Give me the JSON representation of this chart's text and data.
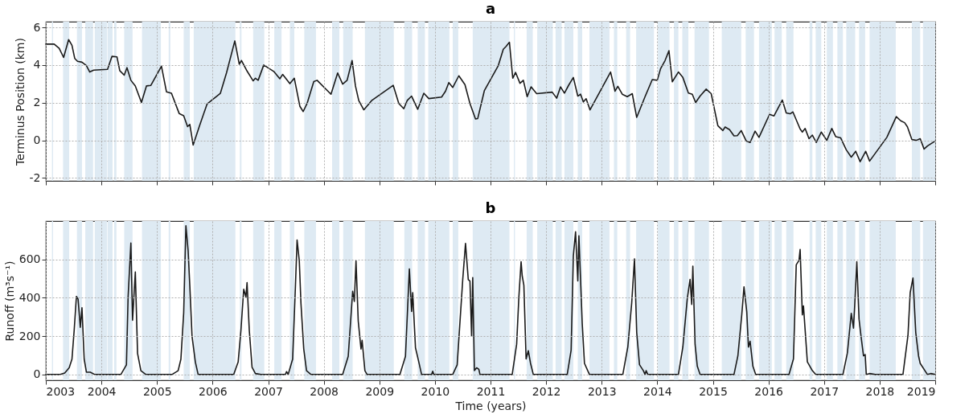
{
  "chart_data": [
    {
      "type": "line",
      "title": "a",
      "ylabel": "Terminus Position (km)",
      "xlim": [
        2003,
        2019
      ],
      "xticks": [
        2003,
        2004,
        2005,
        2006,
        2007,
        2008,
        2009,
        2010,
        2011,
        2012,
        2013,
        2014,
        2015,
        2016,
        2017,
        2018,
        2019
      ],
      "ylim": [
        -2.15,
        6.3
      ],
      "yticks": [
        -2,
        0,
        2,
        4,
        6
      ],
      "grid": true,
      "tick_labels": "y",
      "x": [
        2003.0,
        2003.15,
        2003.24,
        2003.32,
        2003.41,
        2003.47,
        2003.52,
        2003.57,
        2003.65,
        2003.73,
        2003.79,
        2003.86,
        2004.11,
        2004.19,
        2004.28,
        2004.33,
        2004.41,
        2004.46,
        2004.53,
        2004.61,
        2004.72,
        2004.81,
        2004.89,
        2005.08,
        2005.17,
        2005.26,
        2005.4,
        2005.48,
        2005.55,
        2005.59,
        2005.65,
        2005.76,
        2005.9,
        2006.14,
        2006.25,
        2006.4,
        2006.48,
        2006.52,
        2006.61,
        2006.73,
        2006.77,
        2006.82,
        2006.92,
        2007.1,
        2007.21,
        2007.26,
        2007.39,
        2007.47,
        2007.57,
        2007.63,
        2007.7,
        2007.82,
        2007.88,
        2008.13,
        2008.25,
        2008.34,
        2008.42,
        2008.51,
        2008.57,
        2008.63,
        2008.72,
        2008.86,
        2009.25,
        2009.35,
        2009.44,
        2009.5,
        2009.58,
        2009.69,
        2009.8,
        2009.89,
        2010.12,
        2010.19,
        2010.25,
        2010.32,
        2010.43,
        2010.54,
        2010.63,
        2010.73,
        2010.77,
        2010.89,
        2011.14,
        2011.23,
        2011.28,
        2011.34,
        2011.4,
        2011.45,
        2011.53,
        2011.59,
        2011.66,
        2011.73,
        2011.83,
        2012.11,
        2012.19,
        2012.26,
        2012.33,
        2012.41,
        2012.49,
        2012.57,
        2012.62,
        2012.67,
        2012.72,
        2012.79,
        2013.16,
        2013.24,
        2013.29,
        2013.37,
        2013.46,
        2013.55,
        2013.63,
        2013.78,
        2013.91,
        2014.0,
        2014.06,
        2014.14,
        2014.21,
        2014.27,
        2014.38,
        2014.46,
        2014.56,
        2014.63,
        2014.69,
        2014.77,
        2014.88,
        2014.97,
        2015.09,
        2015.18,
        2015.22,
        2015.3,
        2015.38,
        2015.44,
        2015.51,
        2015.6,
        2015.67,
        2015.76,
        2015.83,
        2016.02,
        2016.1,
        2016.25,
        2016.32,
        2016.39,
        2016.44,
        2016.57,
        2016.61,
        2016.66,
        2016.73,
        2016.79,
        2016.86,
        2016.95,
        2017.05,
        2017.14,
        2017.21,
        2017.3,
        2017.4,
        2017.49,
        2017.57,
        2017.65,
        2017.75,
        2017.82,
        2018.13,
        2018.3,
        2018.38,
        2018.45,
        2018.5,
        2018.58,
        2018.66,
        2018.73,
        2018.8,
        2018.86,
        2019.0
      ],
      "series": [
        {
          "color": "#1a1a1a",
          "values": [
            5.11,
            5.11,
            4.89,
            4.4,
            5.35,
            5.05,
            4.35,
            4.2,
            4.15,
            3.97,
            3.63,
            3.73,
            3.77,
            4.46,
            4.43,
            3.7,
            3.46,
            3.86,
            3.19,
            2.89,
            2.01,
            2.89,
            2.92,
            3.94,
            2.58,
            2.5,
            1.42,
            1.31,
            0.73,
            0.85,
            -0.25,
            0.73,
            1.93,
            2.5,
            3.58,
            5.28,
            4.04,
            4.24,
            3.73,
            3.16,
            3.3,
            3.19,
            4.0,
            3.66,
            3.27,
            3.5,
            3.01,
            3.3,
            1.81,
            1.53,
            1.96,
            3.12,
            3.19,
            2.45,
            3.58,
            2.99,
            3.19,
            4.24,
            2.89,
            2.11,
            1.62,
            2.11,
            2.92,
            1.96,
            1.68,
            2.11,
            2.35,
            1.65,
            2.5,
            2.22,
            2.3,
            2.61,
            3.07,
            2.81,
            3.43,
            2.96,
            1.96,
            1.14,
            1.16,
            2.65,
            3.97,
            4.84,
            4.99,
            5.21,
            3.3,
            3.61,
            3.03,
            3.19,
            2.32,
            2.84,
            2.48,
            2.56,
            2.24,
            2.84,
            2.51,
            2.95,
            3.34,
            2.35,
            2.45,
            2.04,
            2.21,
            1.62,
            3.63,
            2.61,
            2.87,
            2.45,
            2.32,
            2.48,
            1.22,
            2.32,
            3.23,
            3.19,
            3.81,
            4.24,
            4.76,
            3.11,
            3.63,
            3.34,
            2.51,
            2.45,
            2.01,
            2.35,
            2.72,
            2.48,
            0.78,
            0.52,
            0.71,
            0.57,
            0.24,
            0.25,
            0.52,
            -0.03,
            -0.11,
            0.49,
            0.16,
            1.38,
            1.3,
            2.14,
            1.46,
            1.41,
            1.51,
            0.6,
            0.44,
            0.63,
            0.09,
            0.28,
            -0.11,
            0.44,
            0.0,
            0.63,
            0.2,
            0.13,
            -0.5,
            -0.89,
            -0.58,
            -1.13,
            -0.58,
            -1.1,
            0.16,
            1.26,
            1.04,
            0.94,
            0.72,
            0.05,
            0.0,
            0.09,
            -0.46,
            -0.3,
            -0.03
          ]
        }
      ],
      "bands": [
        {
          "axis": "x",
          "from": 2003.11,
          "to": 2003.13,
          "color": "#deeaf3"
        },
        {
          "axis": "x",
          "from": 2003.31,
          "to": 2003.42,
          "color": "#deeaf3"
        },
        {
          "axis": "x",
          "from": 2003.56,
          "to": 2003.65,
          "color": "#deeaf3"
        },
        {
          "axis": "x",
          "from": 2003.71,
          "to": 2003.85,
          "color": "#deeaf3"
        },
        {
          "axis": "x",
          "from": 2003.88,
          "to": 2004.1,
          "color": "#deeaf3"
        },
        {
          "axis": "x",
          "from": 2004.11,
          "to": 2004.2,
          "color": "#deeaf3"
        },
        {
          "axis": "x",
          "from": 2004.23,
          "to": 2004.27,
          "color": "#deeaf3"
        },
        {
          "axis": "x",
          "from": 2004.41,
          "to": 2004.56,
          "color": "#deeaf3"
        },
        {
          "axis": "x",
          "from": 2004.73,
          "to": 2005.07,
          "color": "#deeaf3"
        },
        {
          "axis": "x",
          "from": 2005.21,
          "to": 2005.24,
          "color": "#deeaf3"
        },
        {
          "axis": "x",
          "from": 2005.48,
          "to": 2005.59,
          "color": "#deeaf3"
        },
        {
          "axis": "x",
          "from": 2005.66,
          "to": 2006.41,
          "color": "#deeaf3"
        },
        {
          "axis": "x",
          "from": 2006.49,
          "to": 2006.52,
          "color": "#deeaf3"
        },
        {
          "axis": "x",
          "from": 2006.73,
          "to": 2006.93,
          "color": "#deeaf3"
        },
        {
          "axis": "x",
          "from": 2007.11,
          "to": 2007.24,
          "color": "#deeaf3"
        },
        {
          "axis": "x",
          "from": 2007.39,
          "to": 2007.47,
          "color": "#deeaf3"
        },
        {
          "axis": "x",
          "from": 2007.65,
          "to": 2007.86,
          "color": "#deeaf3"
        },
        {
          "axis": "x",
          "from": 2008.15,
          "to": 2008.28,
          "color": "#deeaf3"
        },
        {
          "axis": "x",
          "from": 2008.35,
          "to": 2008.52,
          "color": "#deeaf3"
        },
        {
          "axis": "x",
          "from": 2008.74,
          "to": 2009.26,
          "color": "#deeaf3"
        },
        {
          "axis": "x",
          "from": 2009.45,
          "to": 2009.59,
          "color": "#deeaf3"
        },
        {
          "axis": "x",
          "from": 2009.69,
          "to": 2009.82,
          "color": "#deeaf3"
        },
        {
          "axis": "x",
          "from": 2009.88,
          "to": 2010.26,
          "color": "#deeaf3"
        },
        {
          "axis": "x",
          "from": 2010.32,
          "to": 2010.42,
          "color": "#deeaf3"
        },
        {
          "axis": "x",
          "from": 2010.68,
          "to": 2011.34,
          "color": "#deeaf3"
        },
        {
          "axis": "x",
          "from": 2011.42,
          "to": 2011.44,
          "color": "#deeaf3"
        },
        {
          "axis": "x",
          "from": 2011.65,
          "to": 2011.76,
          "color": "#deeaf3"
        },
        {
          "axis": "x",
          "from": 2011.84,
          "to": 2012.12,
          "color": "#deeaf3"
        },
        {
          "axis": "x",
          "from": 2012.17,
          "to": 2012.28,
          "color": "#deeaf3"
        },
        {
          "axis": "x",
          "from": 2012.33,
          "to": 2012.49,
          "color": "#deeaf3"
        },
        {
          "axis": "x",
          "from": 2012.57,
          "to": 2012.65,
          "color": "#deeaf3"
        },
        {
          "axis": "x",
          "from": 2012.78,
          "to": 2013.14,
          "color": "#deeaf3"
        },
        {
          "axis": "x",
          "from": 2013.22,
          "to": 2013.28,
          "color": "#deeaf3"
        },
        {
          "axis": "x",
          "from": 2013.44,
          "to": 2013.51,
          "color": "#deeaf3"
        },
        {
          "axis": "x",
          "from": 2013.62,
          "to": 2013.94,
          "color": "#deeaf3"
        },
        {
          "axis": "x",
          "from": 2014.01,
          "to": 2014.22,
          "color": "#deeaf3"
        },
        {
          "axis": "x",
          "from": 2014.3,
          "to": 2014.38,
          "color": "#deeaf3"
        },
        {
          "axis": "x",
          "from": 2014.45,
          "to": 2014.56,
          "color": "#deeaf3"
        },
        {
          "axis": "x",
          "from": 2014.67,
          "to": 2014.93,
          "color": "#deeaf3"
        },
        {
          "axis": "x",
          "from": 2015.16,
          "to": 2015.51,
          "color": "#deeaf3"
        },
        {
          "axis": "x",
          "from": 2015.59,
          "to": 2015.74,
          "color": "#deeaf3"
        },
        {
          "axis": "x",
          "from": 2015.83,
          "to": 2016.06,
          "color": "#deeaf3"
        },
        {
          "axis": "x",
          "from": 2016.11,
          "to": 2016.24,
          "color": "#deeaf3"
        },
        {
          "axis": "x",
          "from": 2016.32,
          "to": 2016.45,
          "color": "#deeaf3"
        },
        {
          "axis": "x",
          "from": 2016.74,
          "to": 2016.79,
          "color": "#deeaf3"
        },
        {
          "axis": "x",
          "from": 2016.85,
          "to": 2016.95,
          "color": "#deeaf3"
        },
        {
          "axis": "x",
          "from": 2017.05,
          "to": 2017.16,
          "color": "#deeaf3"
        },
        {
          "axis": "x",
          "from": 2017.24,
          "to": 2017.34,
          "color": "#deeaf3"
        },
        {
          "axis": "x",
          "from": 2017.4,
          "to": 2017.56,
          "color": "#deeaf3"
        },
        {
          "axis": "x",
          "from": 2017.63,
          "to": 2017.74,
          "color": "#deeaf3"
        },
        {
          "axis": "x",
          "from": 2017.82,
          "to": 2018.29,
          "color": "#deeaf3"
        },
        {
          "axis": "x",
          "from": 2018.58,
          "to": 2018.73,
          "color": "#deeaf3"
        },
        {
          "axis": "x",
          "from": 2018.78,
          "to": 2019.0,
          "color": "#deeaf3"
        }
      ]
    },
    {
      "type": "line",
      "title": "b",
      "xlabel": "Time (years)",
      "ylabel": "Runoff (m³s⁻¹)",
      "xlim": [
        2003,
        2019
      ],
      "xticks": [
        2003,
        2004,
        2005,
        2006,
        2007,
        2008,
        2009,
        2010,
        2011,
        2012,
        2013,
        2014,
        2015,
        2016,
        2017,
        2018,
        2019
      ],
      "ylim": [
        -30,
        800
      ],
      "yticks": [
        0,
        200,
        400,
        600
      ],
      "grid": true,
      "x": [
        2003.0,
        2003.26,
        2003.34,
        2003.42,
        2003.47,
        2003.51,
        2003.55,
        2003.58,
        2003.62,
        2003.65,
        2003.69,
        2003.73,
        2003.8,
        2003.88,
        2004.35,
        2004.45,
        2004.48,
        2004.53,
        2004.56,
        2004.61,
        2004.65,
        2004.71,
        2004.8,
        2005.27,
        2005.38,
        2005.43,
        2005.48,
        2005.52,
        2005.56,
        2005.59,
        2005.63,
        2005.69,
        2005.74,
        2006.38,
        2006.46,
        2006.51,
        2006.56,
        2006.6,
        2006.62,
        2006.66,
        2006.71,
        2006.77,
        2006.87,
        2007.31,
        2007.33,
        2007.36,
        2007.44,
        2007.49,
        2007.52,
        2007.56,
        2007.59,
        2007.64,
        2007.69,
        2007.77,
        2008.34,
        2008.44,
        2008.52,
        2008.55,
        2008.58,
        2008.62,
        2008.67,
        2008.69,
        2008.74,
        2008.78,
        2009.37,
        2009.47,
        2009.54,
        2009.58,
        2009.6,
        2009.65,
        2009.71,
        2009.76,
        2009.94,
        2009.96,
        2009.98,
        2010.32,
        2010.4,
        2010.5,
        2010.55,
        2010.6,
        2010.63,
        2010.66,
        2010.68,
        2010.71,
        2010.75,
        2010.79,
        2010.81,
        2011.39,
        2011.47,
        2011.51,
        2011.55,
        2011.57,
        2011.6,
        2011.64,
        2011.68,
        2011.72,
        2011.77,
        2012.38,
        2012.45,
        2012.49,
        2012.53,
        2012.57,
        2012.59,
        2012.65,
        2012.69,
        2012.78,
        2013.38,
        2013.47,
        2013.54,
        2013.59,
        2013.63,
        2013.68,
        2013.75,
        2013.78,
        2013.8,
        2013.83,
        2014.38,
        2014.46,
        2014.54,
        2014.59,
        2014.62,
        2014.64,
        2014.68,
        2014.72,
        2014.77,
        2015.38,
        2015.45,
        2015.52,
        2015.56,
        2015.61,
        2015.64,
        2015.67,
        2015.72,
        2015.77,
        2016.37,
        2016.45,
        2016.5,
        2016.55,
        2016.57,
        2016.61,
        2016.63,
        2016.7,
        2016.79,
        2016.85,
        2017.34,
        2017.42,
        2017.49,
        2017.53,
        2017.55,
        2017.59,
        2017.63,
        2017.67,
        2017.71,
        2017.74,
        2017.76,
        2017.82,
        2017.92,
        2018.42,
        2018.51,
        2018.55,
        2018.6,
        2018.65,
        2018.7,
        2018.73,
        2018.86,
        2018.92,
        2019.0
      ],
      "series": [
        {
          "color": "#1a1a1a",
          "values": [
            0,
            0,
            8,
            35,
            80,
            231,
            407,
            393,
            246,
            348,
            80,
            12,
            12,
            0,
            0,
            50,
            404,
            686,
            283,
            535,
            110,
            20,
            0,
            0,
            20,
            80,
            321,
            776,
            645,
            464,
            200,
            65,
            0,
            0,
            65,
            231,
            445,
            404,
            479,
            231,
            38,
            5,
            0,
            0,
            15,
            0,
            80,
            457,
            701,
            592,
            369,
            133,
            20,
            0,
            0,
            95,
            434,
            381,
            592,
            279,
            133,
            178,
            20,
            0,
            0,
            95,
            550,
            329,
            427,
            140,
            65,
            0,
            0,
            17,
            0,
            0,
            50,
            494,
            683,
            494,
            487,
            200,
            505,
            20,
            35,
            27,
            0,
            0,
            158,
            404,
            588,
            514,
            465,
            81,
            124,
            58,
            0,
            0,
            127,
            618,
            744,
            488,
            723,
            265,
            58,
            0,
            0,
            143,
            373,
            603,
            219,
            51,
            20,
            0,
            20,
            0,
            0,
            143,
            396,
            496,
            365,
            565,
            158,
            43,
            0,
            0,
            97,
            311,
            457,
            327,
            143,
            173,
            43,
            0,
            0,
            81,
            572,
            595,
            652,
            311,
            358,
            66,
            20,
            0,
            0,
            112,
            319,
            242,
            350,
            588,
            288,
            189,
            97,
            104,
            0,
            5,
            0,
            0,
            204,
            427,
            503,
            219,
            97,
            58,
            0,
            5,
            0
          ]
        }
      ],
      "bands": [
        {
          "axis": "x",
          "from": 2003.11,
          "to": 2003.13,
          "color": "#deeaf3"
        },
        {
          "axis": "x",
          "from": 2003.31,
          "to": 2003.42,
          "color": "#deeaf3"
        },
        {
          "axis": "x",
          "from": 2003.56,
          "to": 2003.65,
          "color": "#deeaf3"
        },
        {
          "axis": "x",
          "from": 2003.71,
          "to": 2003.85,
          "color": "#deeaf3"
        },
        {
          "axis": "x",
          "from": 2003.88,
          "to": 2004.1,
          "color": "#deeaf3"
        },
        {
          "axis": "x",
          "from": 2004.11,
          "to": 2004.2,
          "color": "#deeaf3"
        },
        {
          "axis": "x",
          "from": 2004.23,
          "to": 2004.27,
          "color": "#deeaf3"
        },
        {
          "axis": "x",
          "from": 2004.41,
          "to": 2004.56,
          "color": "#deeaf3"
        },
        {
          "axis": "x",
          "from": 2004.73,
          "to": 2005.07,
          "color": "#deeaf3"
        },
        {
          "axis": "x",
          "from": 2005.21,
          "to": 2005.24,
          "color": "#deeaf3"
        },
        {
          "axis": "x",
          "from": 2005.48,
          "to": 2005.59,
          "color": "#deeaf3"
        },
        {
          "axis": "x",
          "from": 2005.66,
          "to": 2006.41,
          "color": "#deeaf3"
        },
        {
          "axis": "x",
          "from": 2006.49,
          "to": 2006.52,
          "color": "#deeaf3"
        },
        {
          "axis": "x",
          "from": 2006.73,
          "to": 2006.93,
          "color": "#deeaf3"
        },
        {
          "axis": "x",
          "from": 2007.11,
          "to": 2007.24,
          "color": "#deeaf3"
        },
        {
          "axis": "x",
          "from": 2007.39,
          "to": 2007.47,
          "color": "#deeaf3"
        },
        {
          "axis": "x",
          "from": 2007.65,
          "to": 2007.86,
          "color": "#deeaf3"
        },
        {
          "axis": "x",
          "from": 2008.15,
          "to": 2008.28,
          "color": "#deeaf3"
        },
        {
          "axis": "x",
          "from": 2008.35,
          "to": 2008.52,
          "color": "#deeaf3"
        },
        {
          "axis": "x",
          "from": 2008.74,
          "to": 2009.26,
          "color": "#deeaf3"
        },
        {
          "axis": "x",
          "from": 2009.45,
          "to": 2009.59,
          "color": "#deeaf3"
        },
        {
          "axis": "x",
          "from": 2009.69,
          "to": 2009.82,
          "color": "#deeaf3"
        },
        {
          "axis": "x",
          "from": 2009.88,
          "to": 2010.26,
          "color": "#deeaf3"
        },
        {
          "axis": "x",
          "from": 2010.32,
          "to": 2010.42,
          "color": "#deeaf3"
        },
        {
          "axis": "x",
          "from": 2010.68,
          "to": 2011.34,
          "color": "#deeaf3"
        },
        {
          "axis": "x",
          "from": 2011.42,
          "to": 2011.44,
          "color": "#deeaf3"
        },
        {
          "axis": "x",
          "from": 2011.65,
          "to": 2011.76,
          "color": "#deeaf3"
        },
        {
          "axis": "x",
          "from": 2011.84,
          "to": 2012.12,
          "color": "#deeaf3"
        },
        {
          "axis": "x",
          "from": 2012.17,
          "to": 2012.28,
          "color": "#deeaf3"
        },
        {
          "axis": "x",
          "from": 2012.33,
          "to": 2012.49,
          "color": "#deeaf3"
        },
        {
          "axis": "x",
          "from": 2012.57,
          "to": 2012.65,
          "color": "#deeaf3"
        },
        {
          "axis": "x",
          "from": 2012.78,
          "to": 2013.14,
          "color": "#deeaf3"
        },
        {
          "axis": "x",
          "from": 2013.22,
          "to": 2013.28,
          "color": "#deeaf3"
        },
        {
          "axis": "x",
          "from": 2013.44,
          "to": 2013.51,
          "color": "#deeaf3"
        },
        {
          "axis": "x",
          "from": 2013.62,
          "to": 2013.94,
          "color": "#deeaf3"
        },
        {
          "axis": "x",
          "from": 2014.01,
          "to": 2014.22,
          "color": "#deeaf3"
        },
        {
          "axis": "x",
          "from": 2014.3,
          "to": 2014.38,
          "color": "#deeaf3"
        },
        {
          "axis": "x",
          "from": 2014.45,
          "to": 2014.56,
          "color": "#deeaf3"
        },
        {
          "axis": "x",
          "from": 2014.67,
          "to": 2014.93,
          "color": "#deeaf3"
        },
        {
          "axis": "x",
          "from": 2015.16,
          "to": 2015.51,
          "color": "#deeaf3"
        },
        {
          "axis": "x",
          "from": 2015.59,
          "to": 2015.74,
          "color": "#deeaf3"
        },
        {
          "axis": "x",
          "from": 2015.83,
          "to": 2016.06,
          "color": "#deeaf3"
        },
        {
          "axis": "x",
          "from": 2016.11,
          "to": 2016.24,
          "color": "#deeaf3"
        },
        {
          "axis": "x",
          "from": 2016.32,
          "to": 2016.45,
          "color": "#deeaf3"
        },
        {
          "axis": "x",
          "from": 2016.74,
          "to": 2016.79,
          "color": "#deeaf3"
        },
        {
          "axis": "x",
          "from": 2016.85,
          "to": 2016.95,
          "color": "#deeaf3"
        },
        {
          "axis": "x",
          "from": 2017.05,
          "to": 2017.16,
          "color": "#deeaf3"
        },
        {
          "axis": "x",
          "from": 2017.24,
          "to": 2017.34,
          "color": "#deeaf3"
        },
        {
          "axis": "x",
          "from": 2017.4,
          "to": 2017.56,
          "color": "#deeaf3"
        },
        {
          "axis": "x",
          "from": 2017.63,
          "to": 2017.74,
          "color": "#deeaf3"
        },
        {
          "axis": "x",
          "from": 2017.82,
          "to": 2018.29,
          "color": "#deeaf3"
        },
        {
          "axis": "x",
          "from": 2018.58,
          "to": 2018.73,
          "color": "#deeaf3"
        },
        {
          "axis": "x",
          "from": 2018.78,
          "to": 2019.0,
          "color": "#deeaf3"
        }
      ]
    }
  ]
}
